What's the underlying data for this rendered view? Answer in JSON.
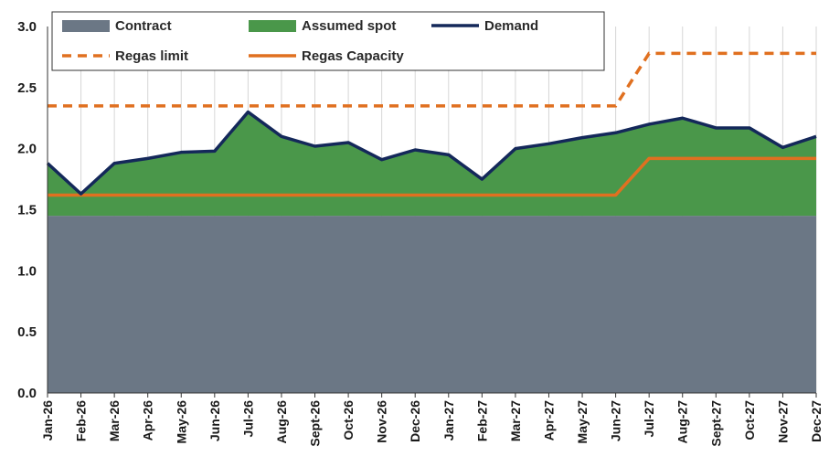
{
  "chart_data": {
    "type": "area",
    "title": "",
    "xlabel": "",
    "ylabel": "",
    "ylim": [
      0,
      3.0
    ],
    "yticks": [
      "0.0",
      "0.5",
      "1.0",
      "1.5",
      "2.0",
      "2.5",
      "3.0"
    ],
    "grid": "vertical lines at each month",
    "legend_position": "top",
    "categories": [
      "Jan-26",
      "Feb-26",
      "Mar-26",
      "Apr-26",
      "May-26",
      "Jun-26",
      "Jul-26",
      "Aug-26",
      "Sept-26",
      "Oct-26",
      "Nov-26",
      "Dec-26",
      "Jan-27",
      "Feb-27",
      "Mar-27",
      "Apr-27",
      "May-27",
      "Jun-27",
      "Jul-27",
      "Aug-27",
      "Sept-27",
      "Oct-27",
      "Nov-27",
      "Dec-27"
    ],
    "series": [
      {
        "name": "Contract",
        "kind": "area",
        "color": "#6b7785",
        "values": [
          1.45,
          1.45,
          1.45,
          1.45,
          1.45,
          1.45,
          1.45,
          1.45,
          1.45,
          1.45,
          1.45,
          1.45,
          1.45,
          1.45,
          1.45,
          1.45,
          1.45,
          1.45,
          1.45,
          1.45,
          1.45,
          1.45,
          1.45,
          1.45
        ]
      },
      {
        "name": "Assumed spot",
        "kind": "area",
        "color": "#4a974a",
        "values": [
          0.43,
          0.18,
          0.43,
          0.47,
          0.52,
          0.53,
          0.85,
          0.65,
          0.57,
          0.6,
          0.46,
          0.54,
          0.5,
          0.3,
          0.55,
          0.59,
          0.64,
          0.68,
          0.75,
          0.8,
          0.72,
          0.72,
          0.56,
          0.65
        ]
      },
      {
        "name": "Demand",
        "kind": "line",
        "color": "#14285a",
        "values": [
          1.88,
          1.63,
          1.88,
          1.92,
          1.97,
          1.98,
          2.3,
          2.1,
          2.02,
          2.05,
          1.91,
          1.99,
          1.95,
          1.75,
          2.0,
          2.04,
          2.09,
          2.13,
          2.2,
          2.25,
          2.17,
          2.17,
          2.01,
          2.1
        ]
      },
      {
        "name": "Regas limit",
        "kind": "dashed-line",
        "color": "#e07020",
        "values": [
          2.35,
          2.35,
          2.35,
          2.35,
          2.35,
          2.35,
          2.35,
          2.35,
          2.35,
          2.35,
          2.35,
          2.35,
          2.35,
          2.35,
          2.35,
          2.35,
          2.35,
          2.35,
          2.78,
          2.78,
          2.78,
          2.78,
          2.78,
          2.78
        ]
      },
      {
        "name": "Regas Capacity",
        "kind": "line",
        "color": "#e07020",
        "values": [
          1.62,
          1.62,
          1.62,
          1.62,
          1.62,
          1.62,
          1.62,
          1.62,
          1.62,
          1.62,
          1.62,
          1.62,
          1.62,
          1.62,
          1.62,
          1.62,
          1.62,
          1.62,
          1.92,
          1.92,
          1.92,
          1.92,
          1.92,
          1.92
        ]
      }
    ]
  }
}
